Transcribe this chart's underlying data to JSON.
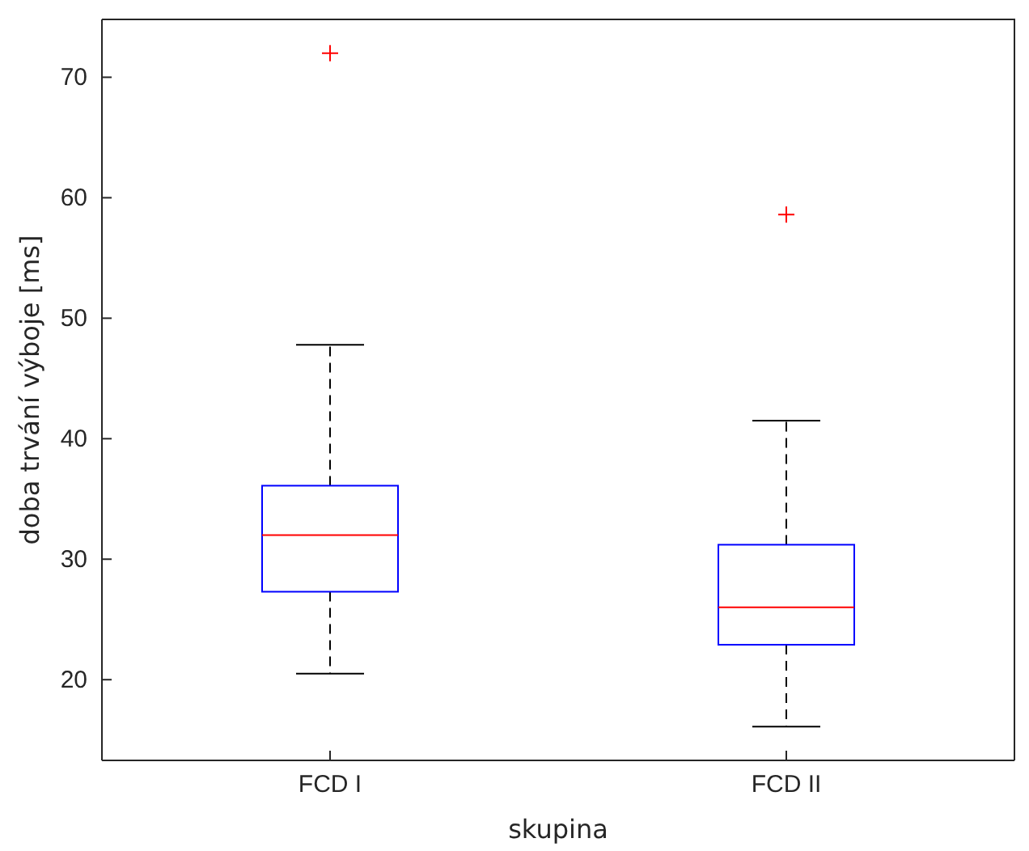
{
  "chart_data": {
    "type": "box",
    "xlabel": "skupina",
    "ylabel": "doba trvání výboje [ms]",
    "categories": [
      "FCD I",
      "FCD II"
    ],
    "ylim": [
      13.3,
      74.8
    ],
    "yticks": [
      20,
      30,
      40,
      50,
      60,
      70
    ],
    "grid": false,
    "color": "#0000ff",
    "marker": "cross",
    "line_style": "dashed",
    "boxes": [
      {
        "low": 20.5,
        "q1": 27.3,
        "median": 32,
        "q3": 36.1,
        "high": 47.8,
        "outliers": [
          72
        ]
      },
      {
        "low": 16.1,
        "q1": 22.9,
        "median": 26,
        "q3": 31.2,
        "high": 41.5,
        "outliers": [
          58.6
        ]
      }
    ]
  }
}
